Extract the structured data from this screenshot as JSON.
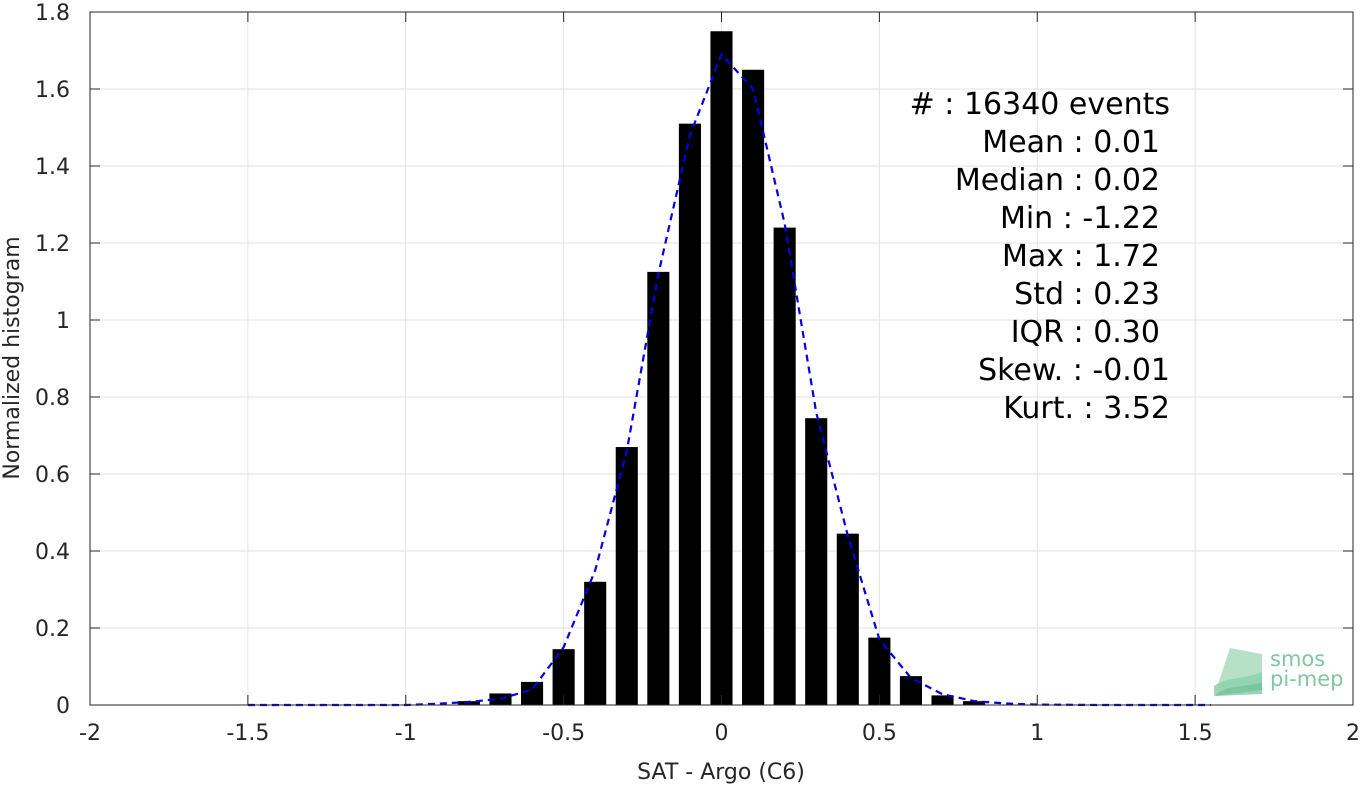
{
  "chart_data": {
    "type": "bar",
    "xlabel": "SAT - Argo (C6)",
    "ylabel": "Normalized histogram",
    "xlim": [
      -2,
      2
    ],
    "ylim": [
      0,
      1.8
    ],
    "xticks": [
      -2,
      -1.5,
      -1,
      -0.5,
      0,
      0.5,
      1,
      1.5,
      2
    ],
    "xtick_labels": [
      "-2",
      "-1.5",
      "-1",
      "-0.5",
      "0",
      "0.5",
      "1",
      "1.5",
      "2"
    ],
    "yticks": [
      0,
      0.2,
      0.4,
      0.6,
      0.8,
      1,
      1.2,
      1.4,
      1.6,
      1.8
    ],
    "ytick_labels": [
      "0",
      "0.2",
      "0.4",
      "0.6",
      "0.8",
      "1",
      "1.2",
      "1.4",
      "1.6",
      "1.8"
    ],
    "grid": true,
    "bar_color": "#000000",
    "bars": {
      "x": [
        -0.8,
        -0.7,
        -0.6,
        -0.5,
        -0.4,
        -0.3,
        -0.2,
        -0.1,
        0.0,
        0.1,
        0.2,
        0.3,
        0.4,
        0.5,
        0.6,
        0.7,
        0.8
      ],
      "values": [
        0.01,
        0.03,
        0.06,
        0.145,
        0.32,
        0.67,
        1.125,
        1.51,
        1.75,
        1.65,
        1.24,
        0.745,
        0.445,
        0.175,
        0.075,
        0.025,
        0.01
      ]
    },
    "curve": {
      "style": "dashed",
      "color": "#0000e0",
      "x": [
        -1.5,
        -1.2,
        -1.0,
        -0.9,
        -0.8,
        -0.7,
        -0.6,
        -0.5,
        -0.4,
        -0.3,
        -0.2,
        -0.1,
        0.0,
        0.1,
        0.2,
        0.3,
        0.4,
        0.5,
        0.6,
        0.7,
        0.8,
        0.9,
        1.0,
        1.2,
        1.55
      ],
      "values": [
        0.0,
        0.0,
        0.0,
        0.003,
        0.008,
        0.016,
        0.04,
        0.15,
        0.35,
        0.66,
        1.12,
        1.48,
        1.69,
        1.6,
        1.25,
        0.76,
        0.44,
        0.17,
        0.07,
        0.028,
        0.01,
        0.004,
        0.001,
        0.0,
        0.0
      ]
    },
    "stats": [
      {
        "label": "#  : 16340 events"
      },
      {
        "label": "Mean : 0.01"
      },
      {
        "label": "Median : 0.02"
      },
      {
        "label": "Min : -1.22"
      },
      {
        "label": "Max : 1.72"
      },
      {
        "label": "Std : 0.23"
      },
      {
        "label": "IQR : 0.30"
      },
      {
        "label": "Skew. : -0.01"
      },
      {
        "label": "Kurt. : 3.52"
      }
    ]
  },
  "logo": {
    "line1": "smos",
    "line2": "pi-mep",
    "color": "#7fc8a0"
  }
}
